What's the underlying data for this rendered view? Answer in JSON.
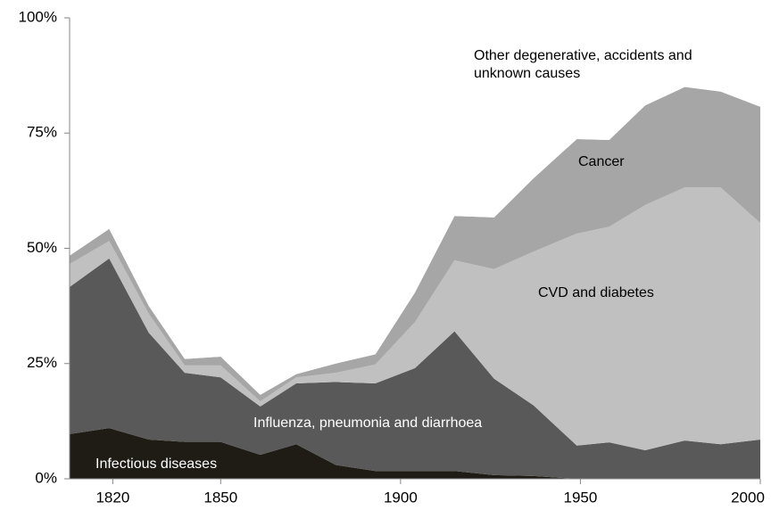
{
  "chart_data": {
    "type": "stacked_area",
    "x": [
      1808,
      1819,
      1830,
      1840,
      1850,
      1861,
      1871,
      1882,
      1893,
      1904,
      1915,
      1926,
      1937,
      1949,
      1958,
      1968,
      1979,
      1989,
      2000
    ],
    "xlim": [
      1808,
      2000
    ],
    "xticks": [
      1820,
      1850,
      1900,
      1950,
      2000
    ],
    "ylim": [
      0,
      100
    ],
    "yticks": [
      {
        "value": 0,
        "label": "0%"
      },
      {
        "value": 25,
        "label": "25%"
      },
      {
        "value": 50,
        "label": "50%"
      },
      {
        "value": 75,
        "label": "75%"
      },
      {
        "value": 100,
        "label": "100%"
      }
    ],
    "series": [
      {
        "name": "Infectious diseases",
        "color": "#1e1c14",
        "values": [
          9.7,
          11,
          8.5,
          8,
          8,
          5.2,
          7.5,
          3,
          1.7,
          1.7,
          1.7,
          0.8,
          0.6,
          0,
          0,
          0,
          0,
          0,
          0
        ]
      },
      {
        "name": "Influenza, pneumonia and diarrhoea",
        "color": "#595959",
        "values": [
          31.9,
          36.8,
          23.2,
          15,
          14,
          10.5,
          13.2,
          18,
          19,
          22.3,
          30.3,
          20.9,
          15.3,
          7.2,
          7.9,
          6.2,
          8.3,
          7.5,
          8.5
        ]
      },
      {
        "name": "CVD and diabetes",
        "color": "#c0c0c0",
        "values": [
          5,
          3.8,
          4.1,
          1.6,
          2.6,
          1.1,
          1.3,
          2,
          4.1,
          10,
          15.4,
          23.8,
          33.4,
          46,
          46.8,
          53.2,
          54.9,
          55.7,
          47
        ]
      },
      {
        "name": "Cancer",
        "color": "#a6a6a6",
        "values": [
          1.8,
          2.6,
          1.7,
          1.4,
          1.9,
          1.4,
          0.7,
          2,
          2.2,
          6.4,
          9.6,
          11.2,
          15.9,
          20.5,
          18.8,
          21.6,
          21.8,
          20.8,
          25.2
        ]
      },
      {
        "name": "Other degenerative, accidents and unknown causes",
        "color": "#ffffff",
        "values": [
          51.6,
          45.8,
          62.5,
          74,
          73.5,
          81.8,
          77.3,
          75,
          73,
          59.6,
          43,
          43.3,
          34.8,
          26.3,
          26.5,
          19,
          15,
          16,
          19.3
        ]
      }
    ]
  }
}
